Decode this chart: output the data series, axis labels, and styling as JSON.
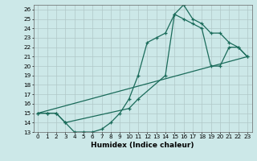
{
  "xlabel": "Humidex (Indice chaleur)",
  "bg_color": "#cce8e8",
  "line_color": "#1a6b5a",
  "grid_color": "#b0c8c8",
  "xlim": [
    -0.5,
    23.5
  ],
  "ylim": [
    13,
    26.5
  ],
  "xticks": [
    0,
    1,
    2,
    3,
    4,
    5,
    6,
    7,
    8,
    9,
    10,
    11,
    12,
    13,
    14,
    15,
    16,
    17,
    18,
    19,
    20,
    21,
    22,
    23
  ],
  "yticks": [
    13,
    14,
    15,
    16,
    17,
    18,
    19,
    20,
    21,
    22,
    23,
    24,
    25,
    26
  ],
  "line1_x": [
    0,
    1,
    2,
    3,
    4,
    5,
    6,
    7,
    8,
    9,
    10,
    11,
    12,
    13,
    14,
    15,
    16,
    17,
    18,
    19,
    20,
    21,
    22,
    23
  ],
  "line1_y": [
    15,
    15,
    15,
    14,
    13,
    13,
    13,
    13.3,
    14,
    15,
    16.5,
    19,
    22.5,
    23,
    23.5,
    25.5,
    26.5,
    25,
    24.5,
    23.5,
    23.5,
    22.5,
    22,
    21
  ],
  "line2_x": [
    0,
    1,
    2,
    3,
    10,
    11,
    14,
    15,
    16,
    17,
    18,
    19,
    20,
    21,
    22,
    23
  ],
  "line2_y": [
    15,
    15,
    15,
    14,
    15.5,
    16.5,
    19,
    25.5,
    25,
    24.5,
    24,
    20,
    20,
    22,
    22,
    21
  ],
  "line3_x": [
    0,
    23
  ],
  "line3_y": [
    15,
    21
  ],
  "xlabel_fontsize": 6.5,
  "tick_fontsize": 5.2,
  "lw": 0.9,
  "marker_size": 3.5
}
